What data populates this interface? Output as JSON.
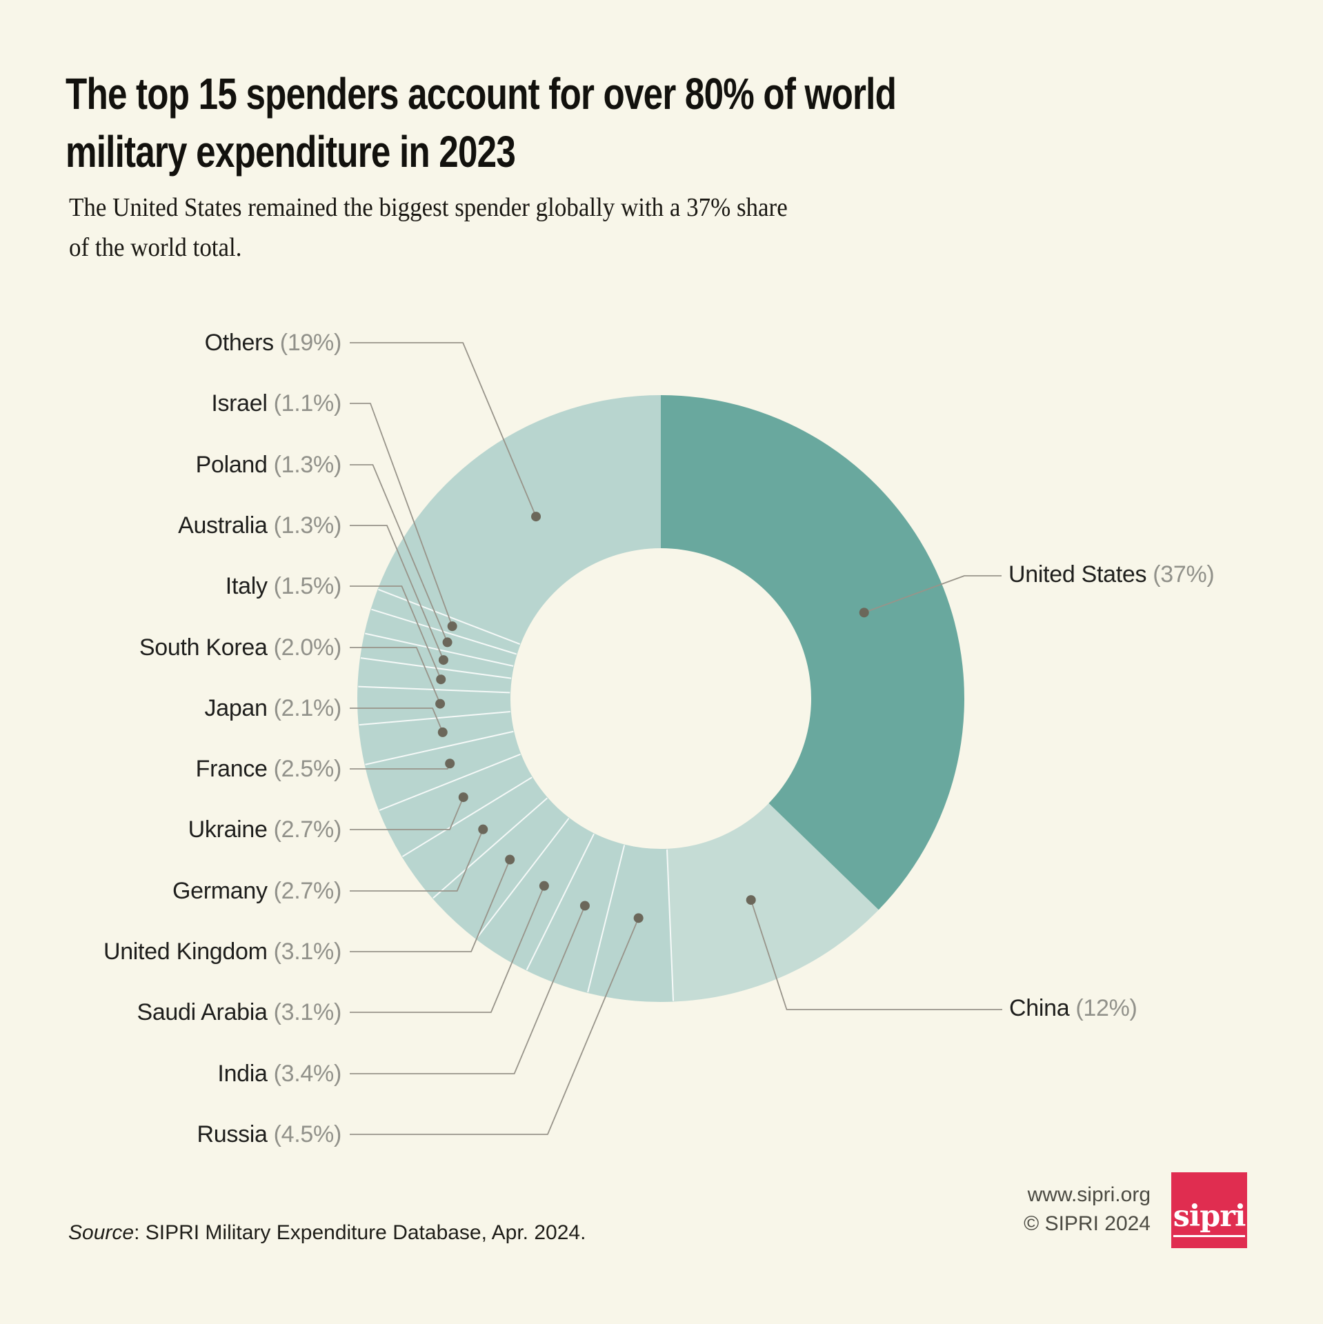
{
  "title": {
    "line1": "The top 15 spenders account for over 80% of world",
    "line2": "military expenditure in 2023"
  },
  "subtitle": {
    "line1": "The United States remained the biggest spender globally with a 37% share",
    "line2": "of the world total."
  },
  "source": {
    "label_italic": "Source",
    "text": ": SIPRI Military Expenditure Database, Apr. 2024."
  },
  "footer": {
    "website": "www.sipri.org",
    "copyright": "© SIPRI 2024",
    "logo_text": "sipri"
  },
  "colors": {
    "background": "#f8f6e9",
    "segment_dark_teal": "#69a89e",
    "segment_medium_teal": "#c5dcd5",
    "segment_light_teal": "#b8d5cf",
    "divider_line": "#ffffff",
    "leader_line": "#98948a",
    "leader_dot": "#6b675a",
    "country_text": "#1e1e1c",
    "percent_text": "#91918a",
    "logo_red": "#e02d50"
  },
  "chart_data": {
    "type": "pie",
    "subtype": "donut",
    "title": "The top 15 spenders account for over 80% of world military expenditure in 2023",
    "units": "share of world military expenditure in 2023 (%)",
    "start_angle_deg": 0,
    "direction": "clockwise",
    "legend_position": "callout-labels",
    "series": [
      {
        "name": "United States",
        "value": 37,
        "display": "(37%)",
        "color": "#69a89e",
        "label_side": "right"
      },
      {
        "name": "China",
        "value": 12,
        "display": "(12%)",
        "color": "#c5dcd5",
        "label_side": "right"
      },
      {
        "name": "Russia",
        "value": 4.5,
        "display": "(4.5%)",
        "color": "#b8d5cf",
        "label_side": "left"
      },
      {
        "name": "India",
        "value": 3.4,
        "display": "(3.4%)",
        "color": "#b8d5cf",
        "label_side": "left"
      },
      {
        "name": "Saudi Arabia",
        "value": 3.1,
        "display": "(3.1%)",
        "color": "#b8d5cf",
        "label_side": "left"
      },
      {
        "name": "United Kingdom",
        "value": 3.1,
        "display": "(3.1%)",
        "color": "#b8d5cf",
        "label_side": "left"
      },
      {
        "name": "Germany",
        "value": 2.7,
        "display": "(2.7%)",
        "color": "#b8d5cf",
        "label_side": "left"
      },
      {
        "name": "Ukraine",
        "value": 2.7,
        "display": "(2.7%)",
        "color": "#b8d5cf",
        "label_side": "left"
      },
      {
        "name": "France",
        "value": 2.5,
        "display": "(2.5%)",
        "color": "#b8d5cf",
        "label_side": "left"
      },
      {
        "name": "Japan",
        "value": 2.1,
        "display": "(2.1%)",
        "color": "#b8d5cf",
        "label_side": "left"
      },
      {
        "name": "South Korea",
        "value": 2.0,
        "display": "(2.0%)",
        "color": "#b8d5cf",
        "label_side": "left"
      },
      {
        "name": "Italy",
        "value": 1.5,
        "display": "(1.5%)",
        "color": "#b8d5cf",
        "label_side": "left"
      },
      {
        "name": "Australia",
        "value": 1.3,
        "display": "(1.3%)",
        "color": "#b8d5cf",
        "label_side": "left"
      },
      {
        "name": "Poland",
        "value": 1.3,
        "display": "(1.3%)",
        "color": "#b8d5cf",
        "label_side": "left"
      },
      {
        "name": "Israel",
        "value": 1.1,
        "display": "(1.1%)",
        "color": "#b8d5cf",
        "label_side": "left"
      },
      {
        "name": "Others",
        "value": 19,
        "display": "(19%)",
        "color": "#b8d5cf",
        "label_side": "left"
      }
    ],
    "left_label_order": [
      "Others",
      "Israel",
      "Poland",
      "Australia",
      "Italy",
      "South Korea",
      "Japan",
      "France",
      "Ukraine",
      "Germany",
      "United Kingdom",
      "Saudi Arabia",
      "India",
      "Russia"
    ]
  }
}
